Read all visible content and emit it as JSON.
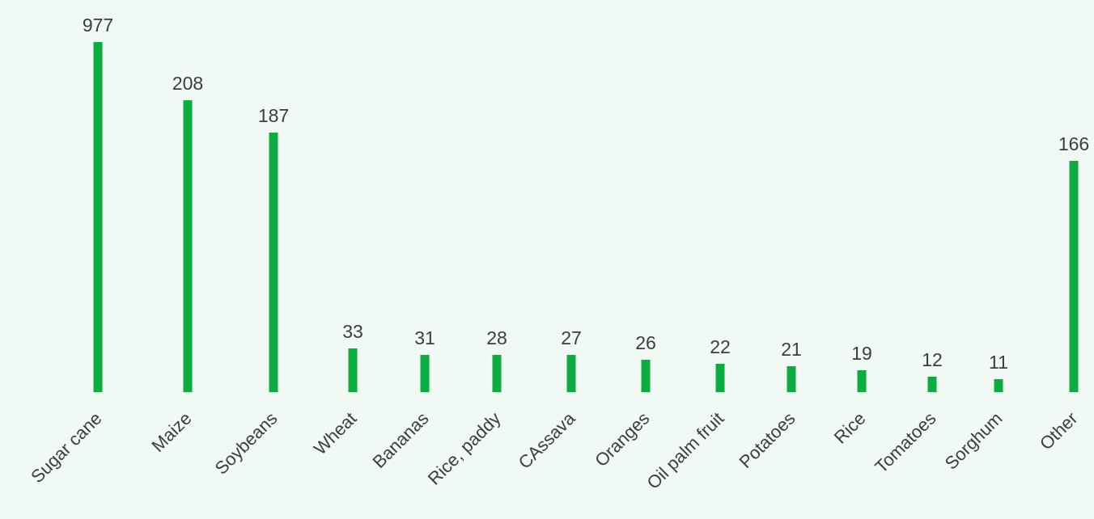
{
  "chart_data": {
    "type": "bar",
    "categories": [
      "Sugar cane",
      "Maize",
      "Soybeans",
      "Wheat",
      "Bananas",
      "Rice, paddy",
      "CAssava",
      "Oranges",
      "Oil palm fruit",
      "Potatoes",
      "Rice",
      "Tomatoes",
      "Sorghum",
      "Other"
    ],
    "values": [
      977,
      208,
      187,
      33,
      31,
      28,
      27,
      26,
      22,
      21,
      19,
      12,
      11,
      166
    ],
    "data_labels": [
      "977",
      "208",
      "187",
      "33",
      "31",
      "28",
      "27",
      "26",
      "22",
      "21",
      "19",
      "12",
      "11",
      "166"
    ],
    "axis_break": "bar heights are not proportional to values; the 977 bar is truncated",
    "grid": false,
    "legend": "none",
    "colors": {
      "bar": "#0aad3e",
      "text": "#3d3d3d",
      "background": "#f1f9f4"
    }
  }
}
